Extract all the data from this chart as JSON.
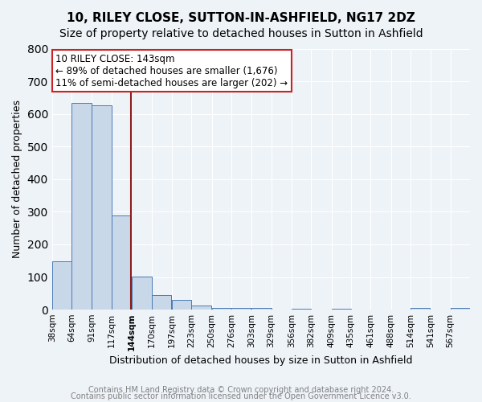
{
  "title1": "10, RILEY CLOSE, SUTTON-IN-ASHFIELD, NG17 2DZ",
  "title2": "Size of property relative to detached houses in Sutton in Ashfield",
  "xlabel": "Distribution of detached houses by size in Sutton in Ashfield",
  "ylabel": "Number of detached properties",
  "bin_labels": [
    "38sqm",
    "64sqm",
    "91sqm",
    "117sqm",
    "144sqm",
    "170sqm",
    "197sqm",
    "223sqm",
    "250sqm",
    "276sqm",
    "303sqm",
    "329sqm",
    "356sqm",
    "382sqm",
    "409sqm",
    "435sqm",
    "461sqm",
    "488sqm",
    "514sqm",
    "541sqm",
    "567sqm"
  ],
  "bin_edges": [
    38,
    64,
    91,
    117,
    144,
    170,
    197,
    223,
    250,
    276,
    303,
    329,
    356,
    382,
    409,
    435,
    461,
    488,
    514,
    541,
    567
  ],
  "bar_heights": [
    148,
    633,
    627,
    289,
    101,
    44,
    30,
    12,
    5,
    6,
    4,
    0,
    3,
    0,
    3,
    0,
    0,
    0,
    5,
    0,
    5
  ],
  "bar_color": "#c8d8e8",
  "bar_edge_color": "#4a7ab5",
  "property_value": 143,
  "vline_color": "#8b1a1a",
  "annotation_box_color": "#ffffff",
  "annotation_box_edge": "#cc2222",
  "annotation_line1": "10 RILEY CLOSE: 143sqm",
  "annotation_line2": "← 89% of detached houses are smaller (1,676)",
  "annotation_line3": "11% of semi-detached houses are larger (202) →",
  "ylim": [
    0,
    800
  ],
  "yticks": [
    0,
    100,
    200,
    300,
    400,
    500,
    600,
    700,
    800
  ],
  "footer1": "Contains HM Land Registry data © Crown copyright and database right 2024.",
  "footer2": "Contains public sector information licensed under the Open Government Licence v3.0.",
  "background_color": "#eef3f8",
  "plot_bg_color": "#eef3f8",
  "grid_color": "#ffffff",
  "title_fontsize": 11,
  "subtitle_fontsize": 10,
  "annotation_fontsize": 8.5,
  "footer_fontsize": 7
}
